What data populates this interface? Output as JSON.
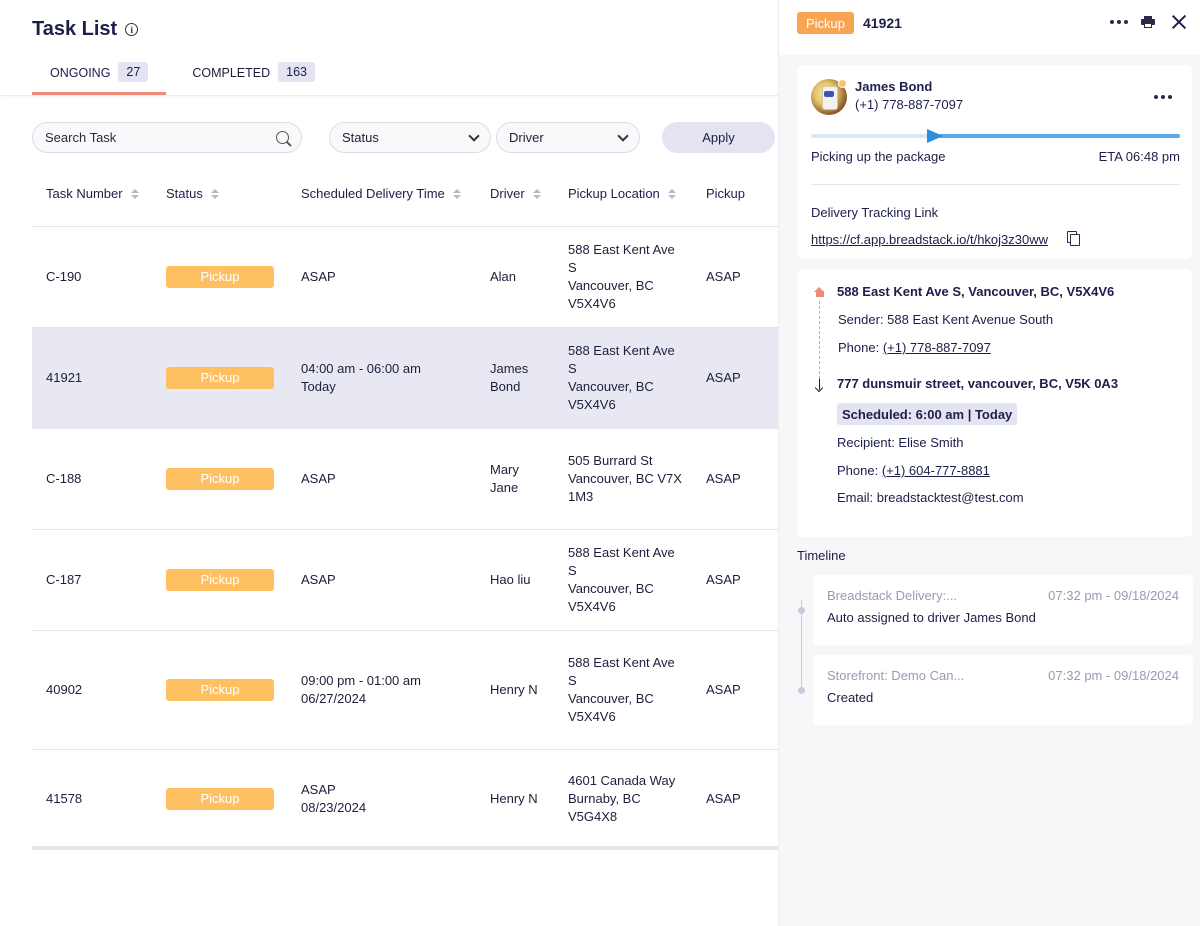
{
  "task_list": {
    "title": "Task List",
    "tabs": [
      {
        "label": "ONGOING",
        "count": "27"
      },
      {
        "label": "COMPLETED",
        "count": "163"
      }
    ],
    "search_placeholder": "Search Task",
    "filters": {
      "status": "Status",
      "driver": "Driver",
      "apply": "Apply"
    },
    "columns": [
      "Task Number",
      "Status",
      "Scheduled Delivery Time",
      "Driver",
      "Pickup Location",
      "Pickup"
    ],
    "rows": [
      {
        "task": "C-190",
        "status": "Pickup",
        "time": [
          "ASAP"
        ],
        "driver": [
          "Alan"
        ],
        "location": [
          "588 East Kent Ave",
          "S",
          "Vancouver, BC",
          "V5X4V6"
        ],
        "pickup": "ASAP"
      },
      {
        "task": "41921",
        "status": "Pickup",
        "time": [
          "04:00 am - 06:00 am",
          "Today"
        ],
        "driver": [
          "James",
          "Bond"
        ],
        "location": [
          "588 East Kent Ave",
          "S",
          "Vancouver, BC",
          "V5X4V6"
        ],
        "pickup": "ASAP"
      },
      {
        "task": "C-188",
        "status": "Pickup",
        "time": [
          "ASAP"
        ],
        "driver": [
          "Mary",
          "Jane"
        ],
        "location": [
          "505 Burrard St",
          "Vancouver, BC V7X",
          "1M3"
        ],
        "pickup": "ASAP"
      },
      {
        "task": "C-187",
        "status": "Pickup",
        "time": [
          "ASAP"
        ],
        "driver": [
          "Hao liu"
        ],
        "location": [
          "588 East Kent Ave",
          "S",
          "Vancouver, BC",
          "V5X4V6"
        ],
        "pickup": "ASAP"
      },
      {
        "task": "40902",
        "status": "Pickup",
        "time": [
          "09:00 pm - 01:00 am",
          "06/27/2024"
        ],
        "driver": [
          "Henry N"
        ],
        "location": [
          "588 East Kent Ave",
          "S",
          "Vancouver, BC",
          "V5X4V6"
        ],
        "pickup": "ASAP"
      },
      {
        "task": "41578",
        "status": "Pickup",
        "time": [
          "ASAP",
          "08/23/2024"
        ],
        "driver": [
          "Henry N"
        ],
        "location": [
          "4601 Canada Way",
          "Burnaby, BC",
          "V5G4X8"
        ],
        "pickup": "ASAP"
      }
    ],
    "selected_row": 1
  },
  "detail": {
    "type": "Pickup",
    "task_id": "41921",
    "driver_name": "James Bond",
    "driver_phone": "(+1) 778-887-7097",
    "progress_status": "Picking up the package",
    "progress_fraction": 0.33,
    "eta": "ETA 06:48 pm",
    "tracking_heading": "Delivery Tracking Link",
    "tracking_link": "https://cf.app.breadstack.io/t/hkoj3z30ww",
    "pickup_address": "588 East Kent Ave S, Vancouver, BC, V5X4V6",
    "sender": "Sender: 588 East Kent Avenue South",
    "sender_phone_label": "Phone: ",
    "sender_phone": "(+1) 778-887-7097",
    "dropoff_address": "777 dunsmuir street, vancouver, BC, V5K 0A3",
    "scheduled": "Scheduled: 6:00 am | Today",
    "recipient": "Recipient: Elise Smith",
    "recipient_phone_label": "Phone: ",
    "recipient_phone": "(+1) 604-777-8881",
    "email": "Email: breadstacktest@test.com",
    "timeline_heading": "Timeline",
    "timeline": [
      {
        "source": "Breadstack Delivery:...",
        "time": "07:32 pm - 09/18/2024",
        "message": "Auto assigned to driver James Bond"
      },
      {
        "source": "Storefront: Demo Can...",
        "time": "07:32 pm - 09/18/2024",
        "message": "Created"
      }
    ]
  }
}
